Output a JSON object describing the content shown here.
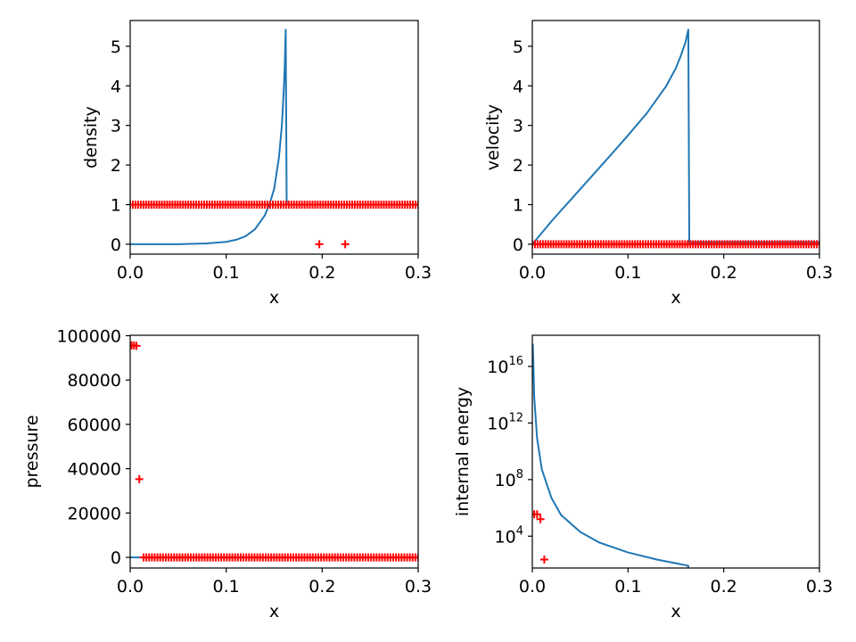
{
  "chart_data": [
    {
      "type": "line",
      "xlabel": "x",
      "ylabel": "density",
      "xlim": [
        0.0,
        0.3
      ],
      "ylim": [
        -0.25,
        5.65
      ],
      "x_ticks": [
        0.0,
        0.1,
        0.2,
        0.3
      ],
      "x_tick_labels": [
        "0.0",
        "0.1",
        "0.2",
        "0.3"
      ],
      "y_ticks": [
        0,
        1,
        2,
        3,
        4,
        5
      ],
      "y_tick_labels": [
        "0",
        "1",
        "2",
        "3",
        "4",
        "5"
      ],
      "series": [
        {
          "style": "line",
          "color": "#1f77b4",
          "x": [
            0.0,
            0.05,
            0.08,
            0.1,
            0.11,
            0.12,
            0.13,
            0.14,
            0.145,
            0.15,
            0.155,
            0.158,
            0.16,
            0.161,
            0.162,
            0.163,
            0.3
          ],
          "y": [
            0.0,
            0.0,
            0.02,
            0.06,
            0.11,
            0.2,
            0.38,
            0.72,
            1.0,
            1.4,
            2.2,
            3.0,
            3.9,
            4.5,
            5.42,
            1.0,
            1.0
          ]
        },
        {
          "style": "markers",
          "marker": "+",
          "color": "#ff0000",
          "x_range": [
            0.0,
            0.3
          ],
          "count": 110,
          "y": 1.0,
          "extra_points": [
            [
              0.197,
              0.0
            ],
            [
              0.224,
              0.0
            ]
          ]
        }
      ]
    },
    {
      "type": "line",
      "xlabel": "x",
      "ylabel": "velocity",
      "xlim": [
        0.0,
        0.3
      ],
      "ylim": [
        -0.25,
        5.65
      ],
      "x_ticks": [
        0.0,
        0.1,
        0.2,
        0.3
      ],
      "x_tick_labels": [
        "0.0",
        "0.1",
        "0.2",
        "0.3"
      ],
      "y_ticks": [
        0,
        1,
        2,
        3,
        4,
        5
      ],
      "y_tick_labels": [
        "0",
        "1",
        "2",
        "3",
        "4",
        "5"
      ],
      "series": [
        {
          "style": "line",
          "color": "#1f77b4",
          "x": [
            0.0,
            0.02,
            0.04,
            0.06,
            0.08,
            0.1,
            0.12,
            0.14,
            0.15,
            0.155,
            0.16,
            0.163,
            0.164,
            0.3
          ],
          "y": [
            0.0,
            0.58,
            1.12,
            1.66,
            2.2,
            2.75,
            3.32,
            4.0,
            4.45,
            4.75,
            5.1,
            5.42,
            0.05,
            0.05
          ]
        },
        {
          "style": "markers",
          "marker": "+",
          "color": "#ff0000",
          "x_range": [
            0.0,
            0.3
          ],
          "count": 110,
          "y": 0.0,
          "extra_points": []
        }
      ]
    },
    {
      "type": "line",
      "xlabel": "x",
      "ylabel": "pressure",
      "xlim": [
        0.0,
        0.3
      ],
      "ylim": [
        -4800,
        100200
      ],
      "x_ticks": [
        0.0,
        0.1,
        0.2,
        0.3
      ],
      "x_tick_labels": [
        "0.0",
        "0.1",
        "0.2",
        "0.3"
      ],
      "y_ticks": [
        0,
        20000,
        40000,
        60000,
        80000,
        100000
      ],
      "y_tick_labels": [
        "0",
        "20000",
        "40000",
        "60000",
        "80000",
        "100000"
      ],
      "series": [
        {
          "style": "line",
          "color": "#1f77b4",
          "x": [
            0.0,
            0.3
          ],
          "y": [
            0,
            0
          ]
        },
        {
          "style": "markers",
          "marker": "+",
          "color": "#ff0000",
          "x_range": [
            0.014,
            0.3
          ],
          "count": 100,
          "y": 0,
          "extra_points": [
            [
              0.0015,
              95600
            ],
            [
              0.004,
              95600
            ],
            [
              0.0065,
              95400
            ],
            [
              0.0095,
              35300
            ]
          ]
        }
      ]
    },
    {
      "type": "line",
      "xlabel": "x",
      "ylabel": "internal energy",
      "xlim": [
        0.0,
        0.3
      ],
      "log_y": true,
      "ylim_log10": [
        1.75,
        18.2
      ],
      "x_ticks": [
        0.0,
        0.1,
        0.2,
        0.3
      ],
      "x_tick_labels": [
        "0.0",
        "0.1",
        "0.2",
        "0.3"
      ],
      "y_ticks_log10": [
        4,
        8,
        12,
        16
      ],
      "y_tick_labels": [
        {
          "base": "10",
          "exp": "4"
        },
        {
          "base": "10",
          "exp": "8"
        },
        {
          "base": "10",
          "exp": "12"
        },
        {
          "base": "10",
          "exp": "16"
        }
      ],
      "series": [
        {
          "style": "line",
          "color": "#1f77b4",
          "x": [
            0.0005,
            0.002,
            0.005,
            0.01,
            0.02,
            0.03,
            0.05,
            0.07,
            0.1,
            0.13,
            0.16,
            0.163,
            0.163
          ],
          "y_log10": [
            17.6,
            13.8,
            10.9,
            8.7,
            6.7,
            5.5,
            4.3,
            3.55,
            2.85,
            2.35,
            1.95,
            1.9,
            1.75
          ]
        },
        {
          "style": "markers",
          "marker": "+",
          "color": "#ff0000",
          "x_range": null,
          "count": 0,
          "y": null,
          "extra_points_log10": [
            [
              0.002,
              5.55
            ],
            [
              0.005,
              5.55
            ],
            [
              0.0085,
              5.2
            ],
            [
              0.0125,
              2.35
            ]
          ]
        }
      ]
    }
  ]
}
